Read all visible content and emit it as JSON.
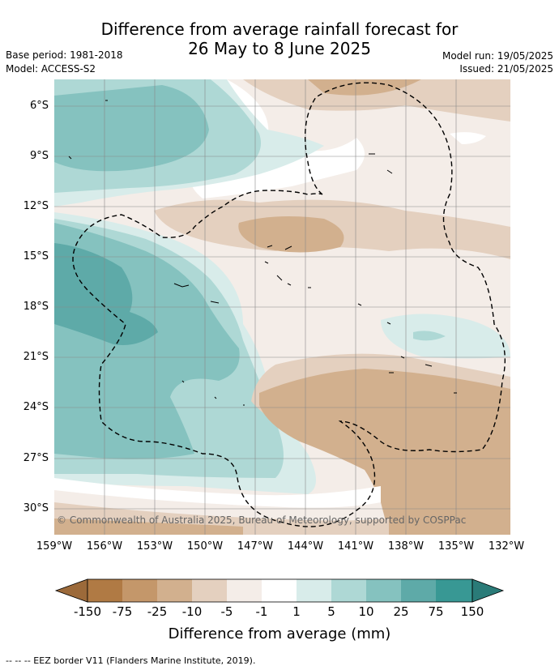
{
  "title_line1": "Difference from average rainfall forecast for",
  "title_line2": "26 May to 8 June 2025",
  "base_period": "Base period: 1981-2018",
  "model": "Model: ACCESS-S2",
  "model_run": "Model run: 19/05/2025",
  "issued": "Issued: 21/05/2025",
  "copyright": "© Commonwealth of Australia 2025, Bureau of Meteorology, supported by COSPPac",
  "lat_labels": [
    "6°S",
    "9°S",
    "12°S",
    "15°S",
    "18°S",
    "21°S",
    "24°S",
    "27°S",
    "30°S"
  ],
  "lon_labels": [
    "159°W",
    "156°W",
    "153°W",
    "150°W",
    "147°W",
    "144°W",
    "141°W",
    "138°W",
    "135°W",
    "132°W"
  ],
  "colorbar": {
    "ticks": [
      "-150",
      "-75",
      "-25",
      "-10",
      "-5",
      "-1",
      "1",
      "5",
      "10",
      "25",
      "75",
      "150"
    ],
    "colors": [
      "#9c6a3a",
      "#b07a44",
      "#c4976a",
      "#d2b08e",
      "#e4d0bf",
      "#f4ede8",
      "#ffffff",
      "#d8ecea",
      "#aed8d5",
      "#85c2bf",
      "#5eaaa8",
      "#389894",
      "#2a7b78"
    ],
    "label": "Difference from average (mm)"
  },
  "legend_note": "--  --  -- EEZ border V11 (Flanders Marine Institute, 2019)."
}
